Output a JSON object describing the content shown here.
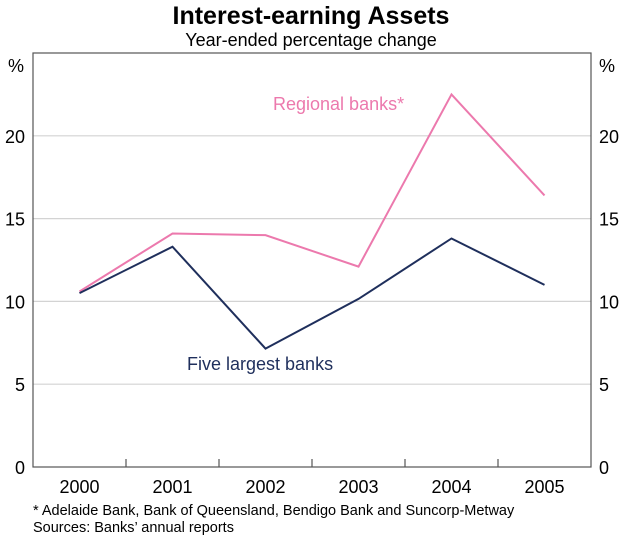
{
  "chart_data": {
    "type": "line",
    "title": "Interest-earning Assets",
    "subtitle": "Year-ended percentage change",
    "ylabel_left": "%",
    "ylabel_right": "%",
    "categories": [
      "2000",
      "2001",
      "2002",
      "2003",
      "2004",
      "2005"
    ],
    "ylim": [
      0,
      25
    ],
    "yticks": [
      0,
      5,
      10,
      15,
      20
    ],
    "grid": true,
    "series": [
      {
        "name": "Regional banks*",
        "color": "#ec79ad",
        "values": [
          10.6,
          14.1,
          14.0,
          12.1,
          22.5,
          16.4
        ]
      },
      {
        "name": "Five largest banks",
        "color": "#1f2f5c",
        "values": [
          10.5,
          13.3,
          7.15,
          10.15,
          13.8,
          11.0
        ]
      }
    ],
    "footnotes": [
      "*   Adelaide Bank, Bank of Queensland, Bendigo Bank and Suncorp-Metway",
      "Sources: Banks’ annual reports"
    ]
  }
}
